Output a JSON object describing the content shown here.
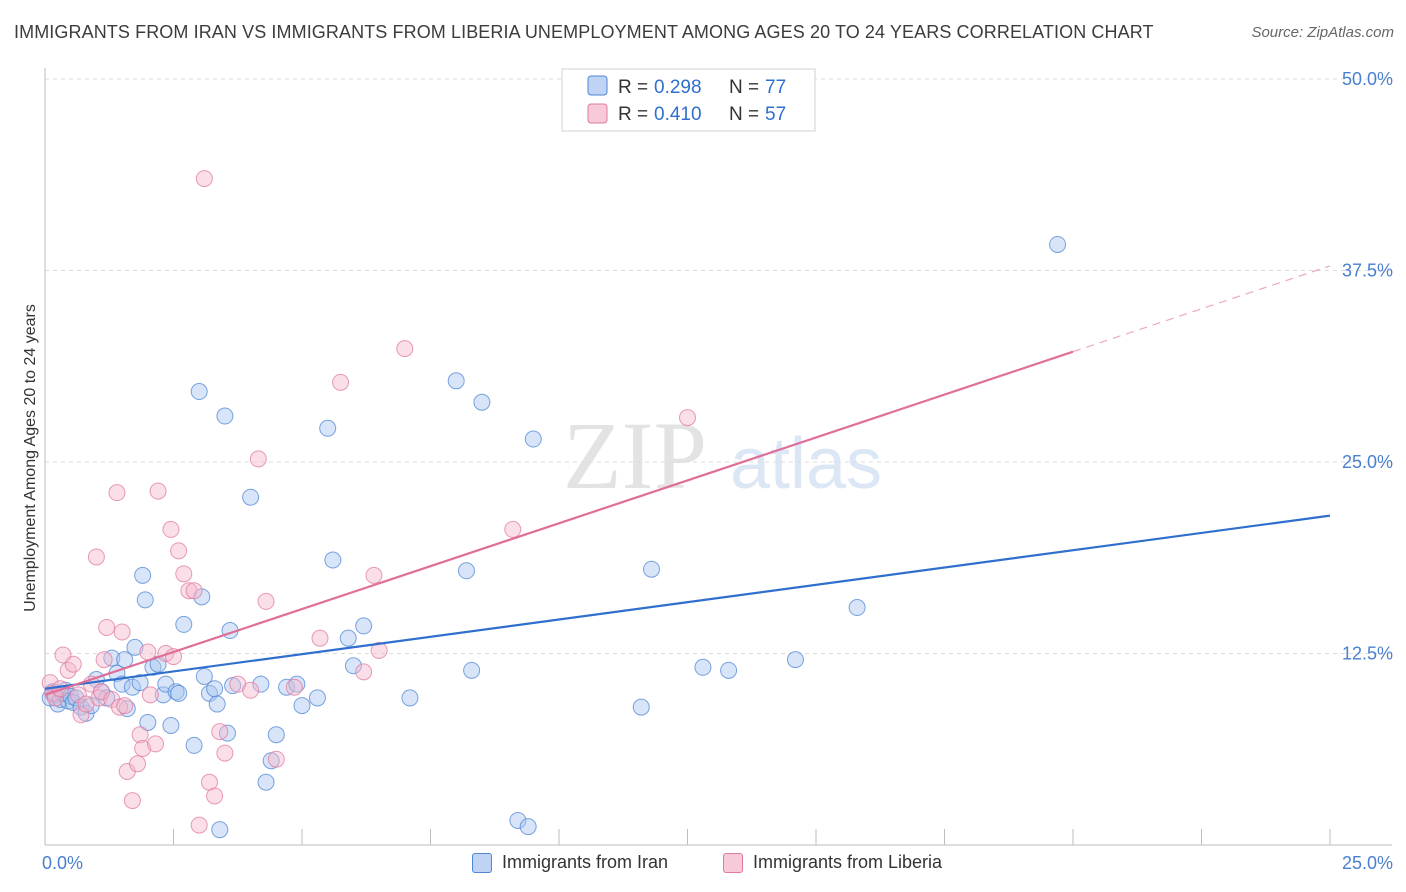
{
  "title": "IMMIGRANTS FROM IRAN VS IMMIGRANTS FROM LIBERIA UNEMPLOYMENT AMONG AGES 20 TO 24 YEARS CORRELATION CHART",
  "source": "Source: ZipAtlas.com",
  "watermark": {
    "zip": "ZIP",
    "atlas": "atlas"
  },
  "colors": {
    "iran": "#4f86d6",
    "iran_fill": "#a9c6f0",
    "iran_line": "#2f6fce",
    "liberia": "#e07aa0",
    "liberia_fill": "#f4b8cc",
    "liberia_line": "#e06e98",
    "axis_text": "#4a7fd0",
    "grid": "#dcdcdc"
  },
  "chart_data": {
    "type": "scatter",
    "title": "IMMIGRANTS FROM IRAN VS IMMIGRANTS FROM LIBERIA UNEMPLOYMENT AMONG AGES 20 TO 24 YEARS CORRELATION CHART",
    "xlabel": "",
    "ylabel": "Unemployment Among Ages 20 to 24 years",
    "xlim": [
      0,
      25
    ],
    "ylim": [
      0,
      50
    ],
    "x_tick_labels": [
      "0.0%",
      "25.0%"
    ],
    "y_ticks": [
      12.5,
      25.0,
      37.5,
      50.0
    ],
    "y_tick_labels": [
      "12.5%",
      "25.0%",
      "37.5%",
      "50.0%"
    ],
    "grid": true,
    "legend_stats": [
      {
        "r_label": "R = ",
        "r_value": "0.298",
        "n_label": "N = ",
        "n_value": "77"
      },
      {
        "r_label": "R = ",
        "r_value": "0.410",
        "n_label": "N = ",
        "n_value": "57"
      }
    ],
    "series": [
      {
        "name": "Immigrants from Iran",
        "color": "#4f86d6",
        "trend": {
          "x0": 0,
          "y0": 10.2,
          "x1": 25,
          "y1": 21.5,
          "dashed_from": null
        },
        "points": [
          [
            0.1,
            9.6
          ],
          [
            0.15,
            10.0
          ],
          [
            0.2,
            9.8
          ],
          [
            0.25,
            9.2
          ],
          [
            0.3,
            9.5
          ],
          [
            0.35,
            9.9
          ],
          [
            0.4,
            10.1
          ],
          [
            0.45,
            9.4
          ],
          [
            0.5,
            9.7
          ],
          [
            0.55,
            9.3
          ],
          [
            0.6,
            9.6
          ],
          [
            0.7,
            9.0
          ],
          [
            0.8,
            8.6
          ],
          [
            0.9,
            9.1
          ],
          [
            1.0,
            10.8
          ],
          [
            1.1,
            10.0
          ],
          [
            1.2,
            9.6
          ],
          [
            1.3,
            12.2
          ],
          [
            1.4,
            11.2
          ],
          [
            1.5,
            10.5
          ],
          [
            1.55,
            12.1
          ],
          [
            1.6,
            8.9
          ],
          [
            1.7,
            10.3
          ],
          [
            1.75,
            12.9
          ],
          [
            1.85,
            10.6
          ],
          [
            1.9,
            17.6
          ],
          [
            1.95,
            16.0
          ],
          [
            2.0,
            8.0
          ],
          [
            2.1,
            11.6
          ],
          [
            2.2,
            11.8
          ],
          [
            2.3,
            9.8
          ],
          [
            2.35,
            10.5
          ],
          [
            2.45,
            7.8
          ],
          [
            2.55,
            10.0
          ],
          [
            2.6,
            9.9
          ],
          [
            2.7,
            14.4
          ],
          [
            2.9,
            6.5
          ],
          [
            3.0,
            29.6
          ],
          [
            3.05,
            16.2
          ],
          [
            3.1,
            11.0
          ],
          [
            3.2,
            9.9
          ],
          [
            3.3,
            10.2
          ],
          [
            3.35,
            9.2
          ],
          [
            3.4,
            1.0
          ],
          [
            3.5,
            28.0
          ],
          [
            3.55,
            7.3
          ],
          [
            3.6,
            14.0
          ],
          [
            3.65,
            10.4
          ],
          [
            4.0,
            22.7
          ],
          [
            4.2,
            10.5
          ],
          [
            4.3,
            4.1
          ],
          [
            4.4,
            5.5
          ],
          [
            4.5,
            7.2
          ],
          [
            4.7,
            10.3
          ],
          [
            4.9,
            10.5
          ],
          [
            5.0,
            9.1
          ],
          [
            5.3,
            9.6
          ],
          [
            5.5,
            27.2
          ],
          [
            5.6,
            18.6
          ],
          [
            5.9,
            13.5
          ],
          [
            6.0,
            11.7
          ],
          [
            6.2,
            14.3
          ],
          [
            7.1,
            9.6
          ],
          [
            8.0,
            30.3
          ],
          [
            8.2,
            17.9
          ],
          [
            8.3,
            11.4
          ],
          [
            8.5,
            28.9
          ],
          [
            9.2,
            1.6
          ],
          [
            9.4,
            1.2
          ],
          [
            9.5,
            26.5
          ],
          [
            11.6,
            9.0
          ],
          [
            11.8,
            18.0
          ],
          [
            12.8,
            11.6
          ],
          [
            13.3,
            11.4
          ],
          [
            14.6,
            12.1
          ],
          [
            15.8,
            15.5
          ],
          [
            19.7,
            39.2
          ]
        ]
      },
      {
        "name": "Immigrants from Liberia",
        "color": "#e07aa0",
        "trend": {
          "x0": 0,
          "y0": 9.8,
          "x1": 25,
          "y1": 37.8,
          "dashed_from": 20
        },
        "points": [
          [
            0.1,
            10.6
          ],
          [
            0.15,
            9.9
          ],
          [
            0.2,
            9.6
          ],
          [
            0.3,
            10.2
          ],
          [
            0.35,
            12.4
          ],
          [
            0.45,
            11.4
          ],
          [
            0.55,
            11.8
          ],
          [
            0.65,
            9.8
          ],
          [
            0.7,
            8.5
          ],
          [
            0.8,
            9.2
          ],
          [
            0.9,
            10.5
          ],
          [
            1.0,
            18.8
          ],
          [
            1.05,
            9.6
          ],
          [
            1.1,
            10.0
          ],
          [
            1.15,
            12.1
          ],
          [
            1.2,
            14.2
          ],
          [
            1.3,
            9.5
          ],
          [
            1.4,
            23.0
          ],
          [
            1.45,
            9.0
          ],
          [
            1.5,
            13.9
          ],
          [
            1.55,
            9.1
          ],
          [
            1.6,
            4.8
          ],
          [
            1.7,
            2.9
          ],
          [
            1.8,
            5.3
          ],
          [
            1.85,
            7.2
          ],
          [
            1.9,
            6.3
          ],
          [
            2.0,
            12.6
          ],
          [
            2.05,
            9.8
          ],
          [
            2.15,
            6.6
          ],
          [
            2.2,
            23.1
          ],
          [
            2.35,
            12.5
          ],
          [
            2.45,
            20.6
          ],
          [
            2.5,
            12.3
          ],
          [
            2.6,
            19.2
          ],
          [
            2.7,
            17.7
          ],
          [
            2.8,
            16.6
          ],
          [
            2.9,
            16.6
          ],
          [
            3.0,
            1.3
          ],
          [
            3.1,
            43.5
          ],
          [
            3.2,
            4.1
          ],
          [
            3.3,
            3.2
          ],
          [
            3.4,
            7.4
          ],
          [
            3.5,
            6.0
          ],
          [
            3.75,
            10.5
          ],
          [
            4.0,
            10.1
          ],
          [
            4.15,
            25.2
          ],
          [
            4.3,
            15.9
          ],
          [
            4.5,
            5.6
          ],
          [
            4.85,
            10.3
          ],
          [
            5.35,
            13.5
          ],
          [
            5.75,
            30.2
          ],
          [
            6.2,
            11.3
          ],
          [
            6.4,
            17.6
          ],
          [
            6.5,
            12.7
          ],
          [
            7.0,
            32.4
          ],
          [
            9.1,
            20.6
          ],
          [
            12.5,
            27.9
          ]
        ]
      }
    ]
  }
}
